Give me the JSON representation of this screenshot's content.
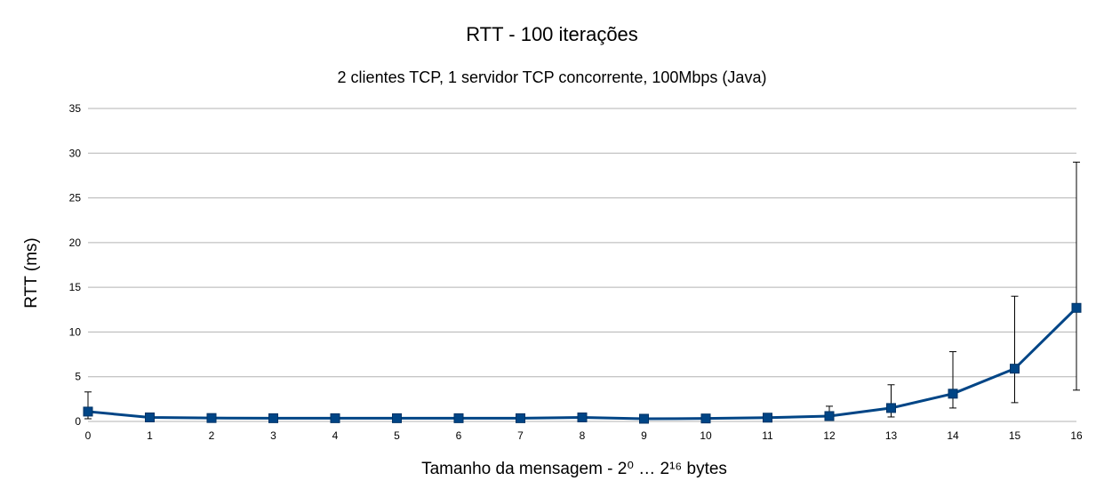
{
  "chart_data": {
    "type": "line",
    "title": "RTT - 100 iterações",
    "subtitle": "2 clientes TCP, 1 servidor TCP concorrente, 100Mbps (Java)",
    "xlabel": "Tamanho da mensagem - 2⁰ … 2¹⁶ bytes",
    "ylabel": "RTT (ms)",
    "ylim": [
      0,
      35
    ],
    "yticks": [
      "0",
      "5",
      "10",
      "15",
      "20",
      "25",
      "30",
      "35"
    ],
    "categories": [
      "0",
      "1",
      "2",
      "3",
      "4",
      "5",
      "6",
      "7",
      "8",
      "9",
      "10",
      "11",
      "12",
      "13",
      "14",
      "15",
      "16"
    ],
    "grid": true,
    "legend": "none",
    "color": "#004586",
    "series": [
      {
        "values": [
          1.1,
          0.45,
          0.38,
          0.36,
          0.36,
          0.36,
          0.36,
          0.36,
          0.45,
          0.3,
          0.33,
          0.42,
          0.6,
          1.5,
          3.1,
          5.9,
          12.7
        ],
        "err_low": [
          0.3,
          0.3,
          0.2,
          0.2,
          0.2,
          0.2,
          0.2,
          0.2,
          0.2,
          0.15,
          0.15,
          0.2,
          0.3,
          0.5,
          1.5,
          2.1,
          3.5
        ],
        "err_high": [
          3.3,
          0.6,
          0.55,
          0.5,
          0.5,
          0.5,
          0.5,
          0.5,
          0.7,
          0.45,
          0.5,
          0.6,
          1.7,
          4.1,
          7.8,
          14.0,
          29.0
        ]
      }
    ]
  }
}
